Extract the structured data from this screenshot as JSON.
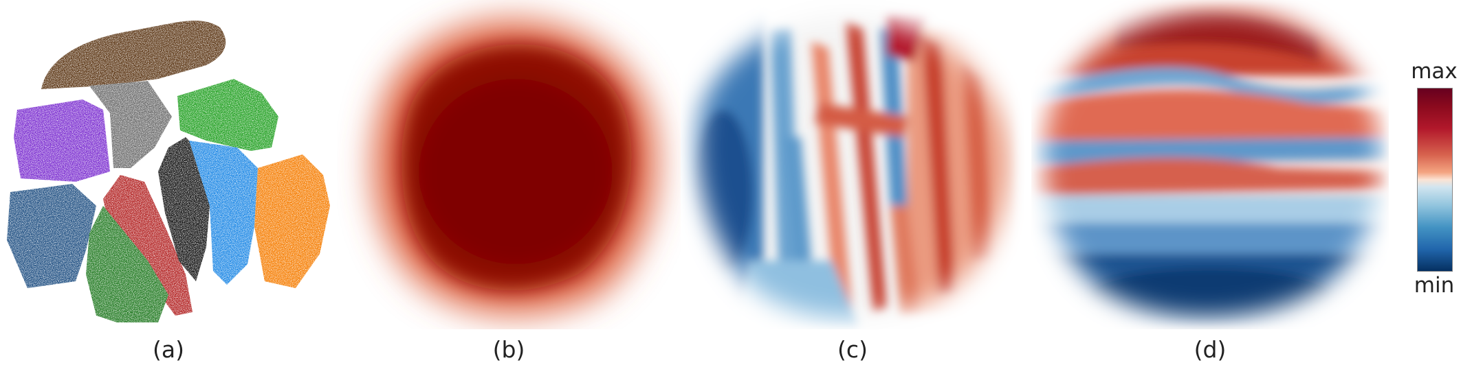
{
  "panels": [
    {
      "caption": "(a)",
      "kind": "cluster-scatter"
    },
    {
      "caption": "(b)",
      "kind": "density-map"
    },
    {
      "caption": "(c)",
      "kind": "feature-map-vertical"
    },
    {
      "caption": "(d)",
      "kind": "feature-map-horizontal"
    }
  ],
  "colorbar": {
    "max_label": "max",
    "min_label": "min"
  },
  "cluster_colors": [
    "#5b3513",
    "#7c2fd0",
    "#6b6b6b",
    "#22a022",
    "#1f4f82",
    "#b22222",
    "#111111",
    "#1e88e5",
    "#f57c00",
    "#227a22"
  ],
  "map_colors": {
    "high": "#7f0000",
    "mid_high": "#d6604d",
    "neutral": "#f7f7f7",
    "mid_low": "#4393c3",
    "low": "#08306b"
  }
}
